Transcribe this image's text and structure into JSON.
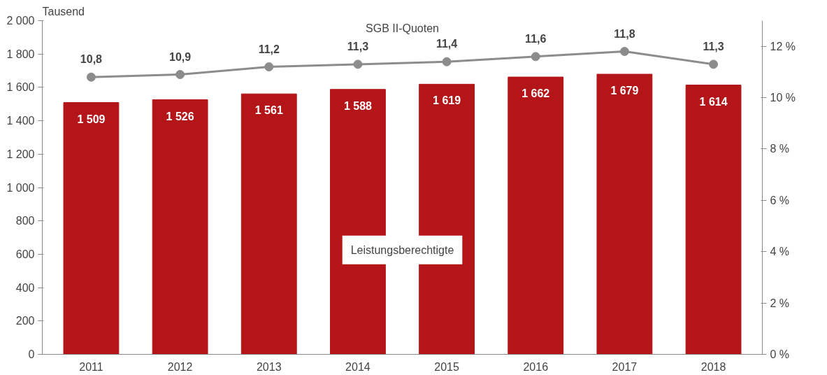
{
  "chart_data": {
    "type": "bar",
    "ylabel": "Tausend",
    "categories": [
      "2011",
      "2012",
      "2013",
      "2014",
      "2015",
      "2016",
      "2017",
      "2018"
    ],
    "series": [
      {
        "name": "Leistungsberechtigte",
        "color": "#b31518",
        "values": [
          1509,
          1526,
          1561,
          1588,
          1619,
          1662,
          1679,
          1614
        ],
        "value_labels": [
          "1 509",
          "1 526",
          "1 561",
          "1 588",
          "1 619",
          "1 662",
          "1 679",
          "1 614"
        ]
      },
      {
        "name": "SGB II-Quoten",
        "type": "line",
        "axis": "y2",
        "color": "#8c8c8c",
        "marker": "circle",
        "values": [
          10.8,
          10.9,
          11.2,
          11.3,
          11.4,
          11.6,
          11.8,
          11.3
        ],
        "value_labels": [
          "10,8",
          "10,9",
          "11,2",
          "11,3",
          "11,4",
          "11,6",
          "11,8",
          "11,3"
        ]
      }
    ],
    "ylim": [
      0,
      2000
    ],
    "yticks": [
      {
        "value": 0,
        "label": "0"
      },
      {
        "value": 200,
        "label": "200"
      },
      {
        "value": 400,
        "label": "400"
      },
      {
        "value": 600,
        "label": "600"
      },
      {
        "value": 800,
        "label": "800"
      },
      {
        "value": 1000,
        "label": "1 000"
      },
      {
        "value": 1200,
        "label": "1 200"
      },
      {
        "value": 1400,
        "label": "1 400"
      },
      {
        "value": 1600,
        "label": "1 600"
      },
      {
        "value": 1800,
        "label": "1 800"
      },
      {
        "value": 2000,
        "label": "2 000"
      }
    ],
    "y2lim": [
      0,
      13
    ],
    "y2ticks": [
      {
        "value": 0,
        "label": "0 %"
      },
      {
        "value": 2,
        "label": "2 %"
      },
      {
        "value": 4,
        "label": "4 %"
      },
      {
        "value": 6,
        "label": "6 %"
      },
      {
        "value": 8,
        "label": "8 %"
      },
      {
        "value": 10,
        "label": "10 %"
      },
      {
        "value": 12,
        "label": "12 %"
      }
    ],
    "grid": false
  }
}
